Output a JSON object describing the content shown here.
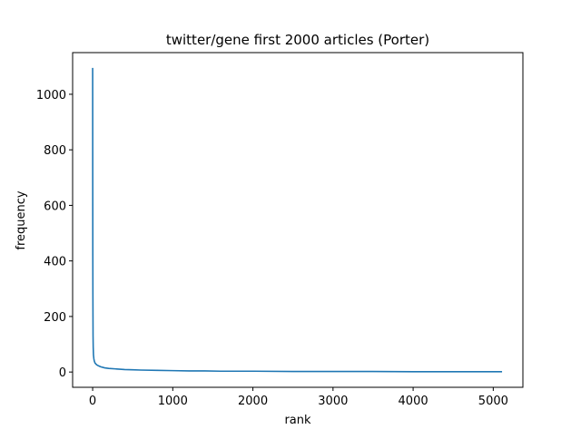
{
  "chart_data": {
    "type": "line",
    "title": "twitter/gene first 2000 articles (Porter)",
    "xlabel": "rank",
    "ylabel": "frequency",
    "xlim": [
      -250,
      5370
    ],
    "ylim": [
      -55,
      1150
    ],
    "xticks": [
      "0",
      "1000",
      "2000",
      "3000",
      "4000",
      "5000"
    ],
    "yticks": [
      "0",
      "200",
      "400",
      "600",
      "800",
      "1000"
    ],
    "grid": false,
    "legend": "none",
    "series": [
      {
        "color": "#1f77b4",
        "x": [
          0,
          1,
          2,
          3,
          4,
          5,
          7,
          10,
          15,
          20,
          30,
          50,
          75,
          100,
          150,
          200,
          300,
          400,
          500,
          600,
          800,
          1000,
          1200,
          1400,
          1600,
          2000,
          2500,
          3000,
          3500,
          4000,
          4500,
          5000,
          5110
        ],
        "y": [
          1095,
          700,
          420,
          280,
          200,
          130,
          90,
          62,
          48,
          40,
          32,
          26,
          22,
          19,
          15,
          13,
          11,
          9,
          8,
          7,
          6,
          5,
          4,
          4,
          3,
          3,
          2,
          2,
          2,
          1,
          1,
          1,
          1
        ]
      }
    ]
  }
}
